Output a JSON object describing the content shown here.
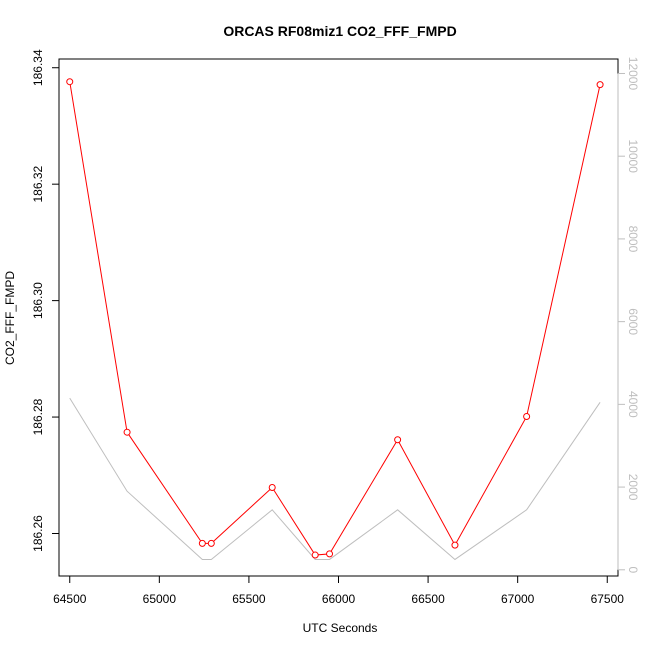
{
  "chart_data": {
    "type": "line",
    "title": "ORCAS RF08miz1 CO2_FFF_FMPD",
    "xlabel": "UTC Seconds",
    "ylabel": "CO2_FFF_FMPD",
    "xlim": [
      64440,
      67560
    ],
    "ylim": [
      186.2527,
      186.3415
    ],
    "y2lim": [
      -150,
      12350
    ],
    "x_ticks": [
      64500,
      65000,
      65500,
      66000,
      66500,
      67000,
      67500
    ],
    "y_ticks": [
      186.26,
      186.28,
      186.3,
      186.32,
      186.34
    ],
    "y2_ticks": [
      0,
      2000,
      4000,
      6000,
      8000,
      10000,
      12000
    ],
    "grid": false,
    "colors": {
      "primary": "#ff0000",
      "secondary": "#bebebe",
      "axis": "#000000"
    },
    "series": [
      {
        "axis": "left",
        "x": [
          64500,
          64820,
          65240,
          65290,
          65630,
          65870,
          65950,
          66330,
          66650,
          67050,
          67460
        ],
        "values": [
          186.3376,
          186.2774,
          186.2583,
          186.2583,
          186.2679,
          186.2563,
          186.2565,
          186.2761,
          186.258,
          186.2801,
          186.3371
        ]
      },
      {
        "axis": "right",
        "x": [
          64500,
          64820,
          65240,
          65290,
          65630,
          65870,
          65950,
          66330,
          66650,
          67050,
          67460
        ],
        "values": [
          4150,
          1900,
          250,
          250,
          1450,
          250,
          250,
          1450,
          250,
          1450,
          4050
        ]
      }
    ]
  }
}
